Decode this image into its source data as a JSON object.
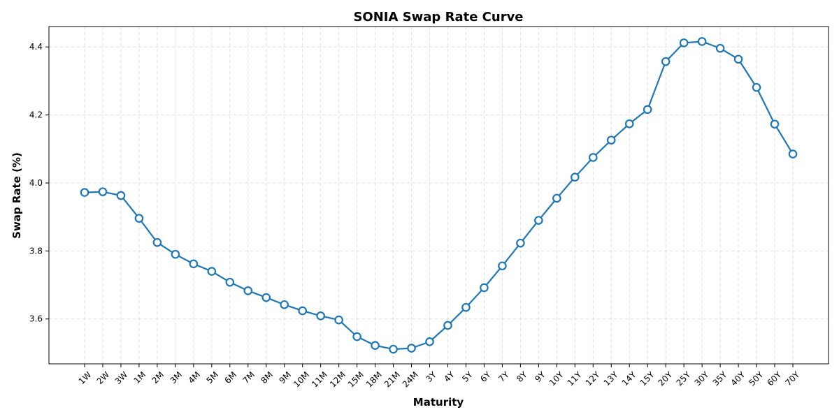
{
  "chart_data": {
    "type": "line",
    "title": "SONIA Swap Rate Curve",
    "xlabel": "Maturity",
    "ylabel": "Swap Rate (%)",
    "categories": [
      "1W",
      "2W",
      "3W",
      "1M",
      "2M",
      "3M",
      "4M",
      "5M",
      "6M",
      "7M",
      "8M",
      "9M",
      "10M",
      "11M",
      "12M",
      "15M",
      "18M",
      "21M",
      "24M",
      "3Y",
      "4Y",
      "5Y",
      "6Y",
      "7Y",
      "8Y",
      "9Y",
      "10Y",
      "11Y",
      "12Y",
      "13Y",
      "14Y",
      "15Y",
      "20Y",
      "25Y",
      "30Y",
      "35Y",
      "40Y",
      "50Y",
      "60Y",
      "70Y"
    ],
    "series": [
      {
        "values": [
          3.972,
          3.974,
          3.963,
          3.896,
          3.825,
          3.79,
          3.762,
          3.74,
          3.708,
          3.683,
          3.663,
          3.642,
          3.624,
          3.609,
          3.597,
          3.548,
          3.522,
          3.511,
          3.514,
          3.533,
          3.581,
          3.634,
          3.692,
          3.756,
          3.823,
          3.89,
          3.955,
          4.017,
          4.075,
          4.126,
          4.174,
          4.216,
          4.357,
          4.412,
          4.416,
          4.396,
          4.364,
          4.281,
          4.173,
          4.085
        ],
        "color": "#1f77b4"
      }
    ],
    "ylim": [
      3.468,
      4.46
    ],
    "yticks": [
      "3.6",
      "3.8",
      "4.0",
      "4.2",
      "4.4"
    ],
    "grid": true,
    "marker": "circle-open"
  }
}
